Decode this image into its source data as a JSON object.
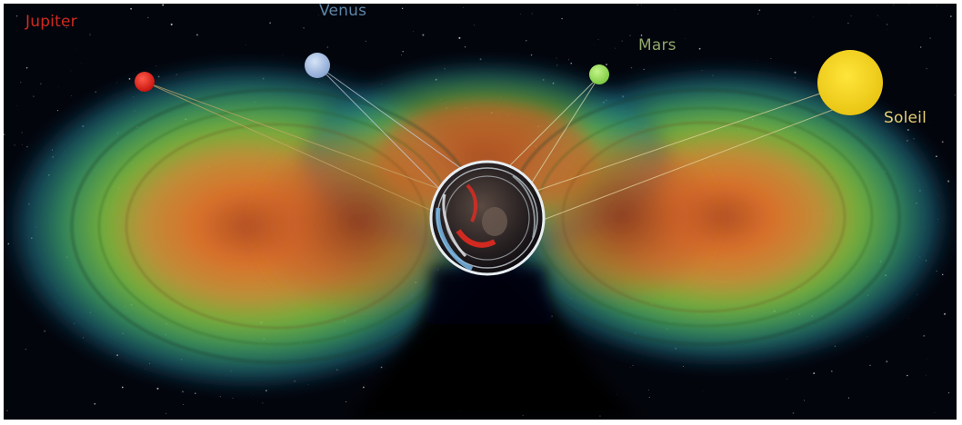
{
  "labels": {
    "jupiter": "Jupiter",
    "venus": "Venus",
    "mars": "Mars",
    "soleil": "Soleil"
  },
  "colors": {
    "background": "#03050c",
    "jupiter": "#e3221d",
    "venus": "#a9c3ea",
    "mars": "#9fe35f",
    "soleil": "#f2d21a",
    "jupiter_label": "#d12a20",
    "venus_label": "#5c86a8",
    "mars_label": "#8fa86a",
    "soleil_label": "#e6cf72",
    "belt_inner": "#d9712b",
    "belt_mid": "#7fc040",
    "belt_outer": "#1d6f86"
  }
}
